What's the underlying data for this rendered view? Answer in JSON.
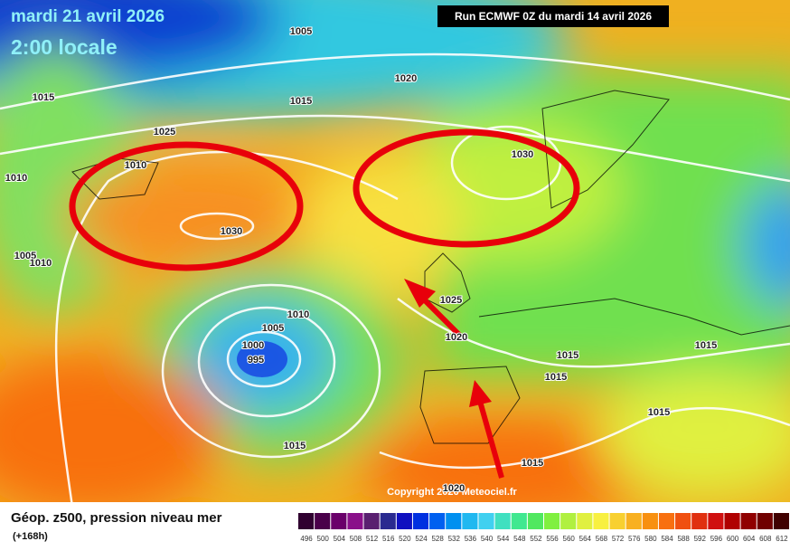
{
  "header": {
    "date": "mardi 21 avril 2026",
    "time": "2:00 locale",
    "run": "Run ECMWF 0Z du mardi 14 avril 2026"
  },
  "isobar_labels": [
    "1005",
    "1020",
    "1015",
    "1015",
    "1025",
    "1010",
    "1030",
    "1010",
    "1030",
    "1005",
    "1010",
    "1010",
    "1025",
    "1005",
    "1020",
    "1000",
    "995",
    "1015",
    "1015",
    "1015",
    "1015",
    "1015",
    "1015",
    "1020"
  ],
  "copyright": "Copyright 2026 Meteociel.fr",
  "legend": {
    "title": "Géop. z500, pression niveau mer",
    "subtitle": "(+168h)",
    "scale": [
      496,
      500,
      504,
      508,
      512,
      516,
      520,
      524,
      528,
      532,
      536,
      540,
      544,
      548,
      552,
      556,
      560,
      564,
      568,
      572,
      576,
      580,
      584,
      588,
      592,
      596,
      600,
      604,
      608,
      612
    ],
    "colors": [
      "#300030",
      "#4a004a",
      "#6a006a",
      "#8a108a",
      "#5a2070",
      "#2a2a90",
      "#1010c0",
      "#0030e0",
      "#0060f0",
      "#0090f0",
      "#20b8f0",
      "#40d0f0",
      "#40e0c0",
      "#40e890",
      "#50e860",
      "#80f040",
      "#b0f040",
      "#e0f040",
      "#f8f040",
      "#f8d030",
      "#f8b020",
      "#f89010",
      "#f87010",
      "#f05010",
      "#e03010",
      "#d01010",
      "#b00000",
      "#900000",
      "#700000",
      "#400000"
    ]
  }
}
